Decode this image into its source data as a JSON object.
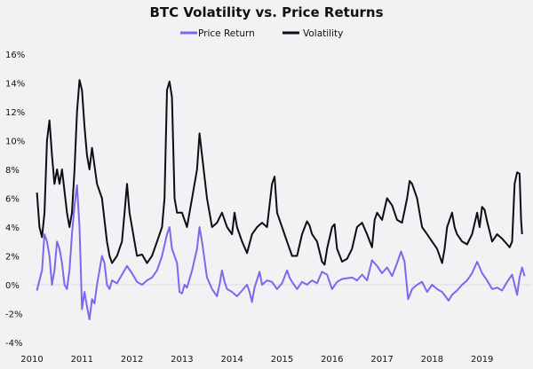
{
  "chart_data": {
    "type": "line",
    "title": "BTC Volatility vs. Price Returns",
    "xlabel": "",
    "ylabel": "",
    "xlim": [
      2010,
      2020
    ],
    "ylim": [
      -4,
      16
    ],
    "x_ticks": [
      "2010",
      "2011",
      "2012",
      "2013",
      "2014",
      "2015",
      "2016",
      "2017",
      "2018",
      "2019"
    ],
    "y_ticks": [
      "16%",
      "14%",
      "12%",
      "10%",
      "8%",
      "6%",
      "4%",
      "2%",
      "0%",
      "-2%",
      "-4%"
    ],
    "legend_position": "top-center",
    "grid": false,
    "series": [
      {
        "name": "Price Return",
        "color": "#7b68ee",
        "points": [
          [
            2010.1,
            -0.4
          ],
          [
            2010.15,
            0.3
          ],
          [
            2010.2,
            1
          ],
          [
            2010.25,
            3.5
          ],
          [
            2010.3,
            3
          ],
          [
            2010.35,
            2
          ],
          [
            2010.4,
            0
          ],
          [
            2010.45,
            1
          ],
          [
            2010.5,
            3
          ],
          [
            2010.55,
            2.5
          ],
          [
            2010.6,
            1.5
          ],
          [
            2010.65,
            0
          ],
          [
            2010.7,
            -0.3
          ],
          [
            2010.75,
            1
          ],
          [
            2010.8,
            3.5
          ],
          [
            2010.85,
            5.5
          ],
          [
            2010.9,
            6.9
          ],
          [
            2010.95,
            4
          ],
          [
            2011.0,
            -1.7
          ],
          [
            2011.05,
            -0.5
          ],
          [
            2011.1,
            -1.5
          ],
          [
            2011.15,
            -2.4
          ],
          [
            2011.2,
            -1
          ],
          [
            2011.25,
            -1.3
          ],
          [
            2011.3,
            0
          ],
          [
            2011.35,
            1
          ],
          [
            2011.4,
            2
          ],
          [
            2011.45,
            1.5
          ],
          [
            2011.5,
            0
          ],
          [
            2011.55,
            -0.3
          ],
          [
            2011.6,
            0.3
          ],
          [
            2011.7,
            0.1
          ],
          [
            2011.8,
            0.7
          ],
          [
            2011.9,
            1.3
          ],
          [
            2012.0,
            0.8
          ],
          [
            2012.1,
            0.2
          ],
          [
            2012.2,
            0
          ],
          [
            2012.3,
            0.3
          ],
          [
            2012.4,
            0.5
          ],
          [
            2012.5,
            1
          ],
          [
            2012.6,
            2
          ],
          [
            2012.7,
            3.5
          ],
          [
            2012.75,
            4
          ],
          [
            2012.8,
            2.5
          ],
          [
            2012.9,
            1.5
          ],
          [
            2012.95,
            -0.5
          ],
          [
            2013.0,
            -0.6
          ],
          [
            2013.05,
            0
          ],
          [
            2013.1,
            -0.2
          ],
          [
            2013.2,
            1
          ],
          [
            2013.3,
            2.5
          ],
          [
            2013.35,
            4
          ],
          [
            2013.4,
            3
          ],
          [
            2013.5,
            0.5
          ],
          [
            2013.6,
            -0.3
          ],
          [
            2013.7,
            -0.8
          ],
          [
            2013.75,
            0
          ],
          [
            2013.8,
            1
          ],
          [
            2013.85,
            0.2
          ],
          [
            2013.9,
            -0.3
          ],
          [
            2014.0,
            -0.5
          ],
          [
            2014.1,
            -0.8
          ],
          [
            2014.2,
            -0.4
          ],
          [
            2014.3,
            0
          ],
          [
            2014.35,
            -0.5
          ],
          [
            2014.4,
            -1.2
          ],
          [
            2014.45,
            -0.2
          ],
          [
            2014.55,
            0.9
          ],
          [
            2014.6,
            0
          ],
          [
            2014.7,
            0.3
          ],
          [
            2014.8,
            0.2
          ],
          [
            2014.9,
            -0.3
          ],
          [
            2015.0,
            0.1
          ],
          [
            2015.1,
            1
          ],
          [
            2015.15,
            0.5
          ],
          [
            2015.2,
            0.2
          ],
          [
            2015.3,
            -0.3
          ],
          [
            2015.4,
            0.2
          ],
          [
            2015.5,
            0
          ],
          [
            2015.6,
            0.3
          ],
          [
            2015.7,
            0.1
          ],
          [
            2015.8,
            0.9
          ],
          [
            2015.9,
            0.7
          ],
          [
            2016.0,
            -0.3
          ],
          [
            2016.1,
            0.2
          ],
          [
            2016.2,
            0.4
          ],
          [
            2016.4,
            0.5
          ],
          [
            2016.5,
            0.3
          ],
          [
            2016.6,
            0.7
          ],
          [
            2016.7,
            0.3
          ],
          [
            2016.8,
            1.7
          ],
          [
            2016.9,
            1.3
          ],
          [
            2017.0,
            0.8
          ],
          [
            2017.1,
            1.2
          ],
          [
            2017.2,
            0.6
          ],
          [
            2017.3,
            1.5
          ],
          [
            2017.38,
            2.3
          ],
          [
            2017.45,
            1.6
          ],
          [
            2017.52,
            -1
          ],
          [
            2017.6,
            -0.3
          ],
          [
            2017.7,
            0
          ],
          [
            2017.8,
            0.2
          ],
          [
            2017.9,
            -0.5
          ],
          [
            2018.0,
            0
          ],
          [
            2018.1,
            -0.3
          ],
          [
            2018.2,
            -0.5
          ],
          [
            2018.33,
            -1.1
          ],
          [
            2018.4,
            -0.7
          ],
          [
            2018.5,
            -0.4
          ],
          [
            2018.6,
            0
          ],
          [
            2018.7,
            0.3
          ],
          [
            2018.8,
            0.8
          ],
          [
            2018.9,
            1.6
          ],
          [
            2019.0,
            0.8
          ],
          [
            2019.1,
            0.3
          ],
          [
            2019.2,
            -0.3
          ],
          [
            2019.3,
            -0.2
          ],
          [
            2019.4,
            -0.4
          ],
          [
            2019.5,
            0.2
          ],
          [
            2019.6,
            0.7
          ],
          [
            2019.65,
            0
          ],
          [
            2019.7,
            -0.7
          ],
          [
            2019.75,
            0.5
          ],
          [
            2019.8,
            1.2
          ],
          [
            2019.85,
            0.6
          ]
        ]
      },
      {
        "name": "Volatility",
        "color": "#0d0d14",
        "points": [
          [
            2010.1,
            6.4
          ],
          [
            2010.15,
            4
          ],
          [
            2010.2,
            3.3
          ],
          [
            2010.25,
            5
          ],
          [
            2010.3,
            10
          ],
          [
            2010.35,
            11.4
          ],
          [
            2010.4,
            9
          ],
          [
            2010.45,
            7
          ],
          [
            2010.5,
            8
          ],
          [
            2010.55,
            7
          ],
          [
            2010.6,
            8
          ],
          [
            2010.7,
            5
          ],
          [
            2010.75,
            4
          ],
          [
            2010.8,
            5
          ],
          [
            2010.85,
            8
          ],
          [
            2010.9,
            12
          ],
          [
            2010.95,
            14.2
          ],
          [
            2011.0,
            13.5
          ],
          [
            2011.05,
            11
          ],
          [
            2011.1,
            9
          ],
          [
            2011.15,
            8
          ],
          [
            2011.2,
            9.5
          ],
          [
            2011.3,
            7
          ],
          [
            2011.4,
            6
          ],
          [
            2011.5,
            3
          ],
          [
            2011.55,
            2
          ],
          [
            2011.6,
            1.5
          ],
          [
            2011.7,
            2
          ],
          [
            2011.75,
            2.5
          ],
          [
            2011.8,
            3
          ],
          [
            2011.85,
            5
          ],
          [
            2011.9,
            7
          ],
          [
            2011.95,
            5
          ],
          [
            2012.0,
            4
          ],
          [
            2012.1,
            2
          ],
          [
            2012.2,
            2.1
          ],
          [
            2012.3,
            1.5
          ],
          [
            2012.4,
            2
          ],
          [
            2012.5,
            3
          ],
          [
            2012.6,
            4
          ],
          [
            2012.65,
            6
          ],
          [
            2012.7,
            13.5
          ],
          [
            2012.75,
            14.1
          ],
          [
            2012.8,
            13
          ],
          [
            2012.85,
            6
          ],
          [
            2012.9,
            5
          ],
          [
            2013.0,
            5
          ],
          [
            2013.1,
            4
          ],
          [
            2013.2,
            6
          ],
          [
            2013.3,
            8
          ],
          [
            2013.35,
            10.5
          ],
          [
            2013.4,
            9
          ],
          [
            2013.5,
            6
          ],
          [
            2013.6,
            4
          ],
          [
            2013.7,
            4.3
          ],
          [
            2013.8,
            5
          ],
          [
            2013.9,
            4
          ],
          [
            2014.0,
            3.5
          ],
          [
            2014.05,
            5
          ],
          [
            2014.1,
            4
          ],
          [
            2014.2,
            3
          ],
          [
            2014.3,
            2.2
          ],
          [
            2014.4,
            3.5
          ],
          [
            2014.5,
            4
          ],
          [
            2014.6,
            4.3
          ],
          [
            2014.7,
            4
          ],
          [
            2014.8,
            7
          ],
          [
            2014.85,
            7.5
          ],
          [
            2014.9,
            5
          ],
          [
            2015.0,
            4
          ],
          [
            2015.1,
            3
          ],
          [
            2015.2,
            2
          ],
          [
            2015.3,
            2
          ],
          [
            2015.4,
            3.5
          ],
          [
            2015.5,
            4.4
          ],
          [
            2015.55,
            4.1
          ],
          [
            2015.6,
            3.5
          ],
          [
            2015.7,
            3
          ],
          [
            2015.8,
            1.6
          ],
          [
            2015.85,
            1.4
          ],
          [
            2015.9,
            2.5
          ],
          [
            2016.0,
            4
          ],
          [
            2016.05,
            4.2
          ],
          [
            2016.1,
            2.5
          ],
          [
            2016.2,
            1.6
          ],
          [
            2016.3,
            1.8
          ],
          [
            2016.4,
            2.5
          ],
          [
            2016.5,
            4
          ],
          [
            2016.6,
            4.3
          ],
          [
            2016.7,
            3.5
          ],
          [
            2016.8,
            2.6
          ],
          [
            2016.85,
            4.5
          ],
          [
            2016.9,
            5
          ],
          [
            2017.0,
            4.5
          ],
          [
            2017.1,
            6
          ],
          [
            2017.2,
            5.5
          ],
          [
            2017.3,
            4.5
          ],
          [
            2017.4,
            4.3
          ],
          [
            2017.5,
            6
          ],
          [
            2017.55,
            7.2
          ],
          [
            2017.6,
            7
          ],
          [
            2017.7,
            6
          ],
          [
            2017.8,
            4
          ],
          [
            2017.9,
            3.5
          ],
          [
            2018.0,
            3
          ],
          [
            2018.1,
            2.5
          ],
          [
            2018.2,
            1.5
          ],
          [
            2018.25,
            2.5
          ],
          [
            2018.3,
            4
          ],
          [
            2018.4,
            5
          ],
          [
            2018.45,
            4
          ],
          [
            2018.5,
            3.5
          ],
          [
            2018.6,
            3
          ],
          [
            2018.7,
            2.8
          ],
          [
            2018.8,
            3.5
          ],
          [
            2018.9,
            5
          ],
          [
            2018.95,
            4
          ],
          [
            2019.0,
            5.4
          ],
          [
            2019.05,
            5.2
          ],
          [
            2019.1,
            4.4
          ],
          [
            2019.2,
            3
          ],
          [
            2019.3,
            3.5
          ],
          [
            2019.4,
            3.2
          ],
          [
            2019.5,
            2.8
          ],
          [
            2019.55,
            2.6
          ],
          [
            2019.6,
            3
          ],
          [
            2019.65,
            7
          ],
          [
            2019.7,
            7.8
          ],
          [
            2019.75,
            7.7
          ],
          [
            2019.78,
            4.5
          ],
          [
            2019.8,
            3.5
          ]
        ]
      }
    ]
  }
}
